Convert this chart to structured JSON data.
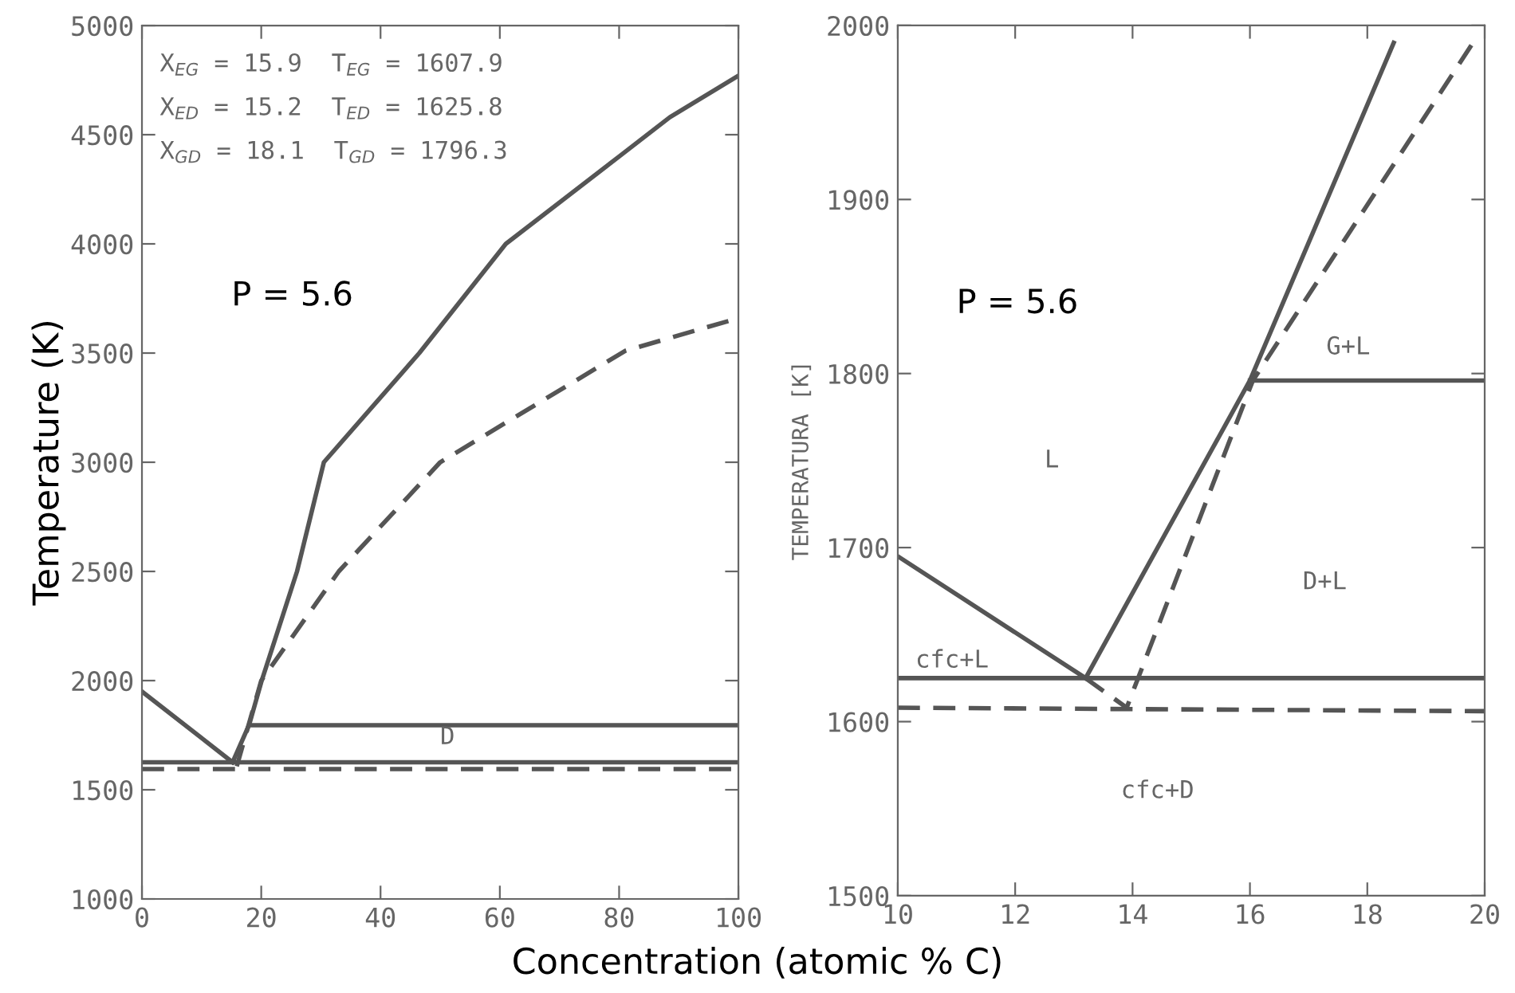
{
  "chart_data": [
    {
      "type": "line",
      "ylabel": "Temperature (K)",
      "xlabel": "Concentration (atomic % C)",
      "xlim": [
        0,
        100
      ],
      "ylim": [
        1000,
        5000
      ],
      "xticks": [
        0,
        20,
        40,
        60,
        80,
        100
      ],
      "yticks": [
        1000,
        1500,
        2000,
        2500,
        3000,
        3500,
        4000,
        4500,
        5000
      ],
      "grid": false,
      "marker": "none",
      "series": [
        {
          "color": "#555555",
          "line_style": "solid",
          "x": [
            0,
            15.2
          ],
          "values": [
            1950,
            1626
          ]
        },
        {
          "color": "#555555",
          "line_style": "solid",
          "x": [
            15.2,
            18,
            20,
            26,
            30.5,
            46.5,
            61,
            80,
            88.5,
            100
          ],
          "values": [
            1626,
            1800,
            1993,
            2500,
            3000,
            3500,
            4000,
            4400,
            4580,
            4770
          ]
        },
        {
          "color": "#555555",
          "line_style": "dashed",
          "x": [
            15.9,
            20,
            33,
            50,
            81,
            100
          ],
          "values": [
            1608,
            2000,
            2500,
            3000,
            3510,
            3660
          ]
        },
        {
          "color": "#555555",
          "line_style": "solid",
          "x": [
            18.1,
            100
          ],
          "values": [
            1796,
            1796
          ]
        },
        {
          "color": "#555555",
          "line_style": "solid",
          "x": [
            0,
            100
          ],
          "values": [
            1626,
            1626
          ]
        },
        {
          "color": "#555555",
          "line_style": "dashed",
          "x": [
            0,
            100
          ],
          "values": [
            1595,
            1595
          ]
        }
      ],
      "annotations": [
        "X$_{EG}$ = 15.9  T$_{EG}$ = 1607.9",
        "X$_{ED}$ = 15.2  T$_{ED}$ = 1625.8",
        "X$_{GD}$ = 18.1  T$_{GD}$ = 1796.3",
        "P = 5.6",
        "D"
      ]
    },
    {
      "type": "line",
      "ylabel": "TEMPERATURA [K]",
      "xlim": [
        10,
        20
      ],
      "ylim": [
        1500,
        2000
      ],
      "xticks": [
        10,
        12,
        14,
        16,
        18,
        20
      ],
      "yticks": [
        1500,
        1600,
        1700,
        1800,
        1900,
        2000
      ],
      "grid": false,
      "marker": "none",
      "series": [
        {
          "color": "#555555",
          "line_style": "solid",
          "x": [
            10,
            13.2
          ],
          "values": [
            1695,
            1625
          ]
        },
        {
          "color": "#555555",
          "line_style": "solid",
          "x": [
            13.2,
            16,
            18.45
          ],
          "values": [
            1625,
            1796,
            1990
          ]
        },
        {
          "color": "#555555",
          "line_style": "dashed",
          "x": [
            13.2,
            13.9,
            16.05,
            19.8
          ],
          "values": [
            1625,
            1608,
            1796,
            1990
          ]
        },
        {
          "color": "#555555",
          "line_style": "solid",
          "x": [
            16,
            20
          ],
          "values": [
            1796,
            1796
          ]
        },
        {
          "color": "#555555",
          "line_style": "solid",
          "x": [
            10,
            20
          ],
          "values": [
            1625,
            1625
          ]
        },
        {
          "color": "#555555",
          "line_style": "dashed",
          "x": [
            10,
            20
          ],
          "values": [
            1608,
            1606
          ]
        }
      ],
      "annotations": [
        "P = 5.6",
        "G+L",
        "L",
        "D+L",
        "cfc+L",
        "cfc+D"
      ]
    }
  ]
}
